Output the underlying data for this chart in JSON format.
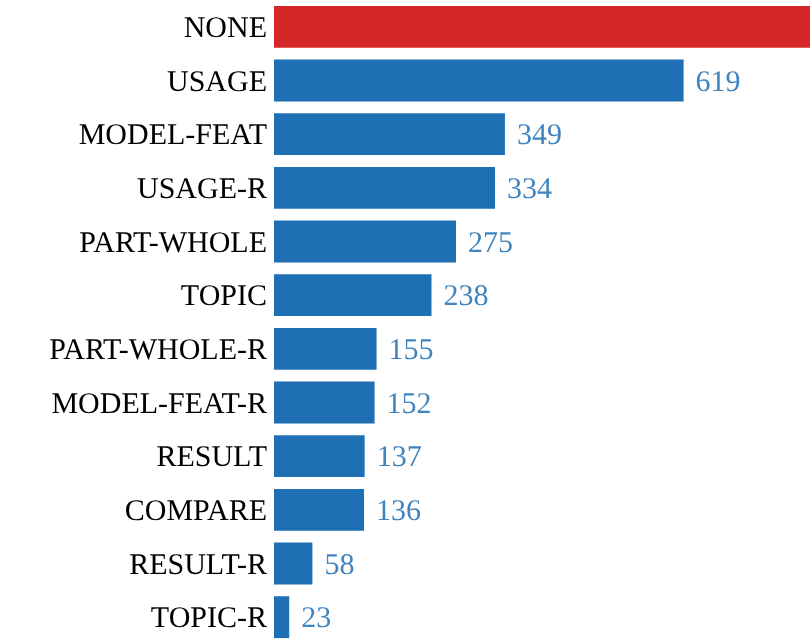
{
  "chart_data": {
    "type": "bar",
    "orientation": "horizontal",
    "categories": [
      "NONE",
      "USAGE",
      "MODEL-FEAT",
      "USAGE-R",
      "PART-WHOLE",
      "TOPIC",
      "PART-WHOLE-R",
      "MODEL-FEAT-R",
      "RESULT",
      "COMPARE",
      "RESULT-R",
      "TOPIC-R"
    ],
    "values": [
      810,
      619,
      349,
      334,
      275,
      238,
      155,
      152,
      137,
      136,
      58,
      23
    ],
    "value_labels": [
      null,
      "619",
      "349",
      "334",
      "275",
      "238",
      "155",
      "152",
      "137",
      "136",
      "58",
      "23"
    ],
    "colors": [
      "#d62728",
      "#1f6fb4",
      "#1f6fb4",
      "#1f6fb4",
      "#1f6fb4",
      "#1f6fb4",
      "#1f6fb4",
      "#1f6fb4",
      "#1f6fb4",
      "#1f6fb4",
      "#1f6fb4",
      "#1f6fb4"
    ],
    "legend": false
  }
}
